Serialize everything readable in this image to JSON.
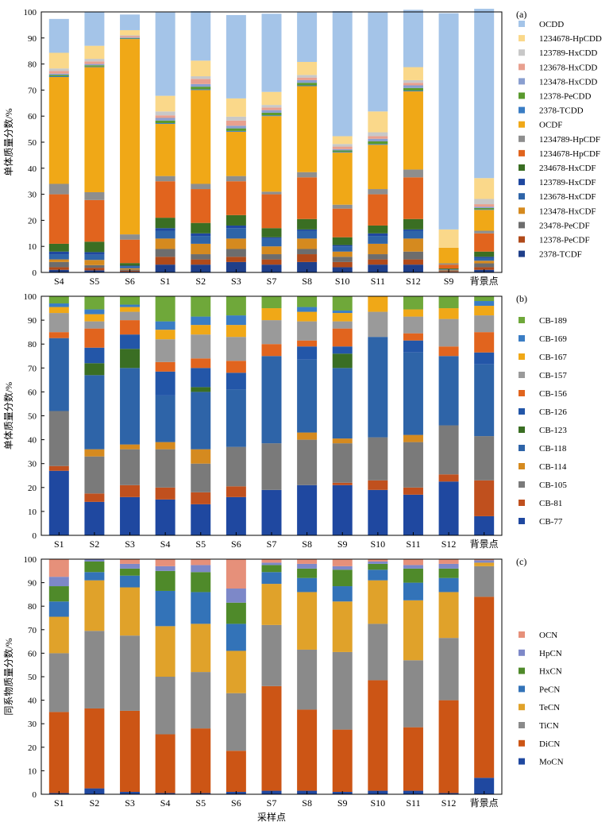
{
  "chart_data": [
    {
      "type": "bar",
      "stacked": true,
      "panel_label": "(a)",
      "ylabel": "单体质量分数/%",
      "xlabel": "",
      "ylim": [
        0,
        100
      ],
      "yticks": [
        0,
        10,
        20,
        30,
        40,
        50,
        60,
        70,
        80,
        90,
        100
      ],
      "grid": false,
      "legend_position": "right",
      "categories": [
        "S4",
        "S5",
        "S6",
        "S1",
        "S2",
        "S3",
        "S7",
        "S8",
        "S10",
        "S11",
        "S12",
        "S9",
        "背景点"
      ],
      "series": [
        {
          "name": "2378-TCDF",
          "color": "#1f3f8a",
          "values": [
            1,
            0.8,
            0.3,
            3,
            3,
            4,
            3,
            4,
            2,
            3,
            3,
            0.2,
            1
          ]
        },
        {
          "name": "12378-PeCDF",
          "color": "#b04a1a",
          "values": [
            1,
            1,
            0.3,
            3,
            2,
            2,
            2,
            3,
            2,
            2,
            2,
            0.3,
            1
          ]
        },
        {
          "name": "23478-PeCDF",
          "color": "#6d6d6d",
          "values": [
            2,
            1,
            0.5,
            3,
            2,
            3,
            2,
            2,
            2,
            2,
            3,
            0.3,
            1.5
          ]
        },
        {
          "name": "123478-HxCDF",
          "color": "#d58a1f",
          "values": [
            1,
            2,
            0.5,
            4,
            4,
            4,
            3,
            4,
            2,
            4,
            5,
            0.2,
            1
          ]
        },
        {
          "name": "123678-HxCDF",
          "color": "#2e64a8",
          "values": [
            2,
            2,
            0.8,
            3,
            3,
            4,
            3,
            3,
            2,
            3,
            3,
            0.2,
            1
          ]
        },
        {
          "name": "123789-HxCDF",
          "color": "#1f48a0",
          "values": [
            1,
            1,
            0.2,
            1,
            1,
            1,
            0.5,
            0.5,
            0.5,
            1,
            0.5,
            0,
            0.5
          ]
        },
        {
          "name": "234678-HxCDF",
          "color": "#3a6e23",
          "values": [
            3,
            4,
            1,
            4,
            4,
            4,
            3.5,
            4,
            3,
            3,
            4,
            0.3,
            2
          ]
        },
        {
          "name": "1234678-HpCDF",
          "color": "#e1641e",
          "values": [
            19,
            16,
            9,
            14,
            13,
            13,
            13,
            16,
            11,
            12,
            16,
            1.5,
            7
          ]
        },
        {
          "name": "1234789-HpCDF",
          "color": "#8e8e8e",
          "values": [
            4,
            3,
            2,
            2,
            2,
            2,
            1,
            2,
            1.5,
            2,
            3,
            0.5,
            1
          ]
        },
        {
          "name": "OCDF",
          "color": "#f0a817",
          "values": [
            41,
            48,
            75,
            20,
            36,
            17,
            29,
            33,
            20,
            17,
            30,
            6,
            8
          ]
        },
        {
          "name": "2378-TCDD",
          "color": "#3a7dc4",
          "values": [
            0.3,
            0.2,
            0.2,
            0.3,
            0.3,
            0.3,
            0.3,
            0.3,
            0.3,
            0.3,
            0.3,
            0,
            0.2
          ]
        },
        {
          "name": "12378-PeCDD",
          "color": "#5a9a2e",
          "values": [
            0.5,
            0.5,
            0.2,
            1,
            1,
            1,
            1,
            1,
            0.5,
            1,
            1,
            0,
            0.5
          ]
        },
        {
          "name": "123478-HxCDD",
          "color": "#8a9fd0",
          "values": [
            0.5,
            0.5,
            0.2,
            1,
            1,
            1,
            1,
            1,
            0.5,
            1,
            1,
            0,
            0.5
          ]
        },
        {
          "name": "123678-HxCDD",
          "color": "#e8a08f",
          "values": [
            1,
            1,
            0.5,
            1,
            2,
            2,
            1,
            1,
            1,
            1,
            1,
            0,
            1
          ]
        },
        {
          "name": "123789-HxCDD",
          "color": "#c8c8c8",
          "values": [
            1,
            1,
            0.3,
            1.5,
            1,
            1.5,
            1,
            1,
            1,
            1.5,
            1,
            0,
            2
          ]
        },
        {
          "name": "1234678-HpCDD",
          "color": "#fad88a",
          "values": [
            6,
            5,
            2,
            6,
            6,
            7,
            5,
            5,
            3,
            8,
            5,
            7,
            8
          ]
        },
        {
          "name": "OCDD",
          "color": "#a4c4e8",
          "values": [
            13,
            13,
            6,
            32,
            19,
            32,
            30,
            19,
            48,
            38,
            22,
            83,
            65
          ]
        }
      ]
    },
    {
      "type": "bar",
      "stacked": true,
      "panel_label": "(b)",
      "ylabel": "单体质量分数/%",
      "xlabel": "",
      "ylim": [
        0,
        100
      ],
      "yticks": [
        0,
        10,
        20,
        30,
        40,
        50,
        60,
        70,
        80,
        90,
        100
      ],
      "grid": false,
      "legend_position": "right",
      "categories": [
        "S1",
        "S2",
        "S3",
        "S4",
        "S5",
        "S6",
        "S7",
        "S8",
        "S9",
        "S10",
        "S11",
        "S12",
        "背景点"
      ],
      "series": [
        {
          "name": "CB-77",
          "color": "#1f48a0",
          "values": [
            27,
            14,
            16,
            15,
            13,
            16,
            19,
            21,
            21,
            19,
            17,
            22.5,
            8
          ]
        },
        {
          "name": "CB-81",
          "color": "#c0501e",
          "values": [
            2,
            3.5,
            5,
            5,
            5,
            4.5,
            0,
            0,
            1,
            4,
            3,
            3,
            15
          ]
        },
        {
          "name": "CB-105",
          "color": "#7a7a7a",
          "values": [
            23,
            15.5,
            15,
            16,
            12,
            16.5,
            19.5,
            19,
            16.5,
            18,
            19,
            20.5,
            18.5
          ]
        },
        {
          "name": "CB-114",
          "color": "#d58a1f",
          "values": [
            0,
            3,
            2,
            3,
            6,
            0,
            0,
            3,
            2,
            0,
            3,
            0,
            0
          ]
        },
        {
          "name": "CB-118",
          "color": "#2e64a8",
          "values": [
            30.5,
            31,
            32,
            19.5,
            24,
            24,
            36.5,
            30.5,
            29.5,
            42,
            34.5,
            29,
            30
          ]
        },
        {
          "name": "CB-123",
          "color": "#3a6e23",
          "values": [
            0,
            5,
            8,
            0,
            2,
            0,
            0,
            0,
            6,
            0,
            0,
            0,
            0
          ]
        },
        {
          "name": "CB-126",
          "color": "#2356a8",
          "values": [
            0,
            6.5,
            6,
            10,
            8,
            7,
            0,
            5.5,
            3,
            0,
            5,
            0,
            5
          ]
        },
        {
          "name": "CB-156",
          "color": "#e1641e",
          "values": [
            2.5,
            8,
            6,
            4,
            4,
            5,
            5,
            2.5,
            7.5,
            0,
            3,
            4,
            8.5
          ]
        },
        {
          "name": "CB-157",
          "color": "#9a9a9a",
          "values": [
            8,
            3,
            3.5,
            9.5,
            10,
            10,
            10,
            8,
            3,
            10.5,
            7,
            11.5,
            7
          ]
        },
        {
          "name": "CB-167",
          "color": "#f0a817",
          "values": [
            2.5,
            3,
            2,
            4,
            4,
            5,
            5,
            4,
            3.5,
            6.5,
            3,
            4.5,
            4
          ]
        },
        {
          "name": "CB-169",
          "color": "#3a7dc4",
          "values": [
            1.5,
            2,
            1,
            3.5,
            3.5,
            4,
            0,
            2,
            1,
            0,
            0,
            0,
            2
          ]
        },
        {
          "name": "CB-189",
          "color": "#6fa83a",
          "values": [
            3,
            5.5,
            3.5,
            10.5,
            8.5,
            8,
            5,
            4.5,
            6,
            0,
            5.5,
            5,
            2
          ]
        }
      ]
    },
    {
      "type": "bar",
      "stacked": true,
      "panel_label": "(c)",
      "ylabel": "同系物质量分数/%",
      "xlabel": "采样点",
      "ylim": [
        0,
        100
      ],
      "yticks": [
        0,
        10,
        20,
        30,
        40,
        50,
        60,
        70,
        80,
        90,
        100
      ],
      "grid": false,
      "legend_position": "right",
      "categories": [
        "S1",
        "S2",
        "S3",
        "S4",
        "S5",
        "S6",
        "S7",
        "S8",
        "S9",
        "S10",
        "S11",
        "S12",
        "背景点"
      ],
      "series": [
        {
          "name": "MoCN",
          "color": "#1f48a0",
          "values": [
            0.5,
            2.5,
            1,
            0.5,
            0.5,
            1,
            1.5,
            1.5,
            1,
            1.5,
            1.5,
            0.5,
            7
          ]
        },
        {
          "name": "DiCN",
          "color": "#cc5515",
          "values": [
            34.5,
            34,
            34.5,
            25,
            27.5,
            17.5,
            44.5,
            34.5,
            26.5,
            47,
            27,
            39.5,
            77
          ]
        },
        {
          "name": "TiCN",
          "color": "#8a8a8a",
          "values": [
            25,
            33,
            32,
            24.5,
            24,
            24.5,
            26,
            25.5,
            33,
            24,
            28.5,
            26.5,
            13
          ]
        },
        {
          "name": "TeCN",
          "color": "#e0a22a",
          "values": [
            15.5,
            21.5,
            20.5,
            21.5,
            20.5,
            18,
            17.5,
            24.5,
            21.5,
            18.5,
            25.5,
            19.5,
            1.5
          ]
        },
        {
          "name": "PeCN",
          "color": "#3373b8",
          "values": [
            6.5,
            3.5,
            5,
            15,
            13.5,
            11.5,
            5,
            6,
            6.5,
            4.5,
            7.5,
            6,
            0
          ]
        },
        {
          "name": "HxCN",
          "color": "#4f8a2a",
          "values": [
            6.5,
            4.5,
            3,
            8.5,
            8.5,
            9,
            3,
            4,
            7,
            2.5,
            6,
            4,
            0
          ]
        },
        {
          "name": "HpCN",
          "color": "#7d88c8",
          "values": [
            4,
            1,
            2,
            2,
            3,
            6,
            1,
            2,
            1.5,
            1,
            1.5,
            2,
            1
          ]
        },
        {
          "name": "OCN",
          "color": "#e6907a",
          "values": [
            7.5,
            0,
            2,
            3,
            2.5,
            12.5,
            1.5,
            2,
            3,
            1,
            2.5,
            2,
            0.5
          ]
        }
      ]
    }
  ]
}
